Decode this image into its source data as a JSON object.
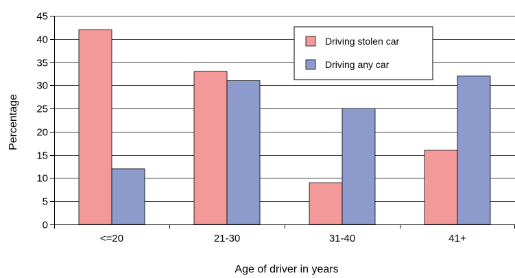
{
  "chart_data": {
    "type": "bar",
    "title": "",
    "xlabel": "Age of driver in years",
    "ylabel": "Percentage",
    "ylim": [
      0,
      45
    ],
    "yticks": [
      0,
      5,
      10,
      15,
      20,
      25,
      30,
      35,
      40,
      45
    ],
    "categories": [
      "<=20",
      "21-30",
      "31-40",
      "41+"
    ],
    "series": [
      {
        "name": "Driving stolen car",
        "color": "#f4999a",
        "values": [
          42,
          33,
          9,
          16
        ]
      },
      {
        "name": "Driving any car",
        "color": "#8c9bcb",
        "values": [
          12,
          31,
          25,
          32
        ]
      }
    ],
    "grid": true,
    "legend_position": "top-right"
  }
}
